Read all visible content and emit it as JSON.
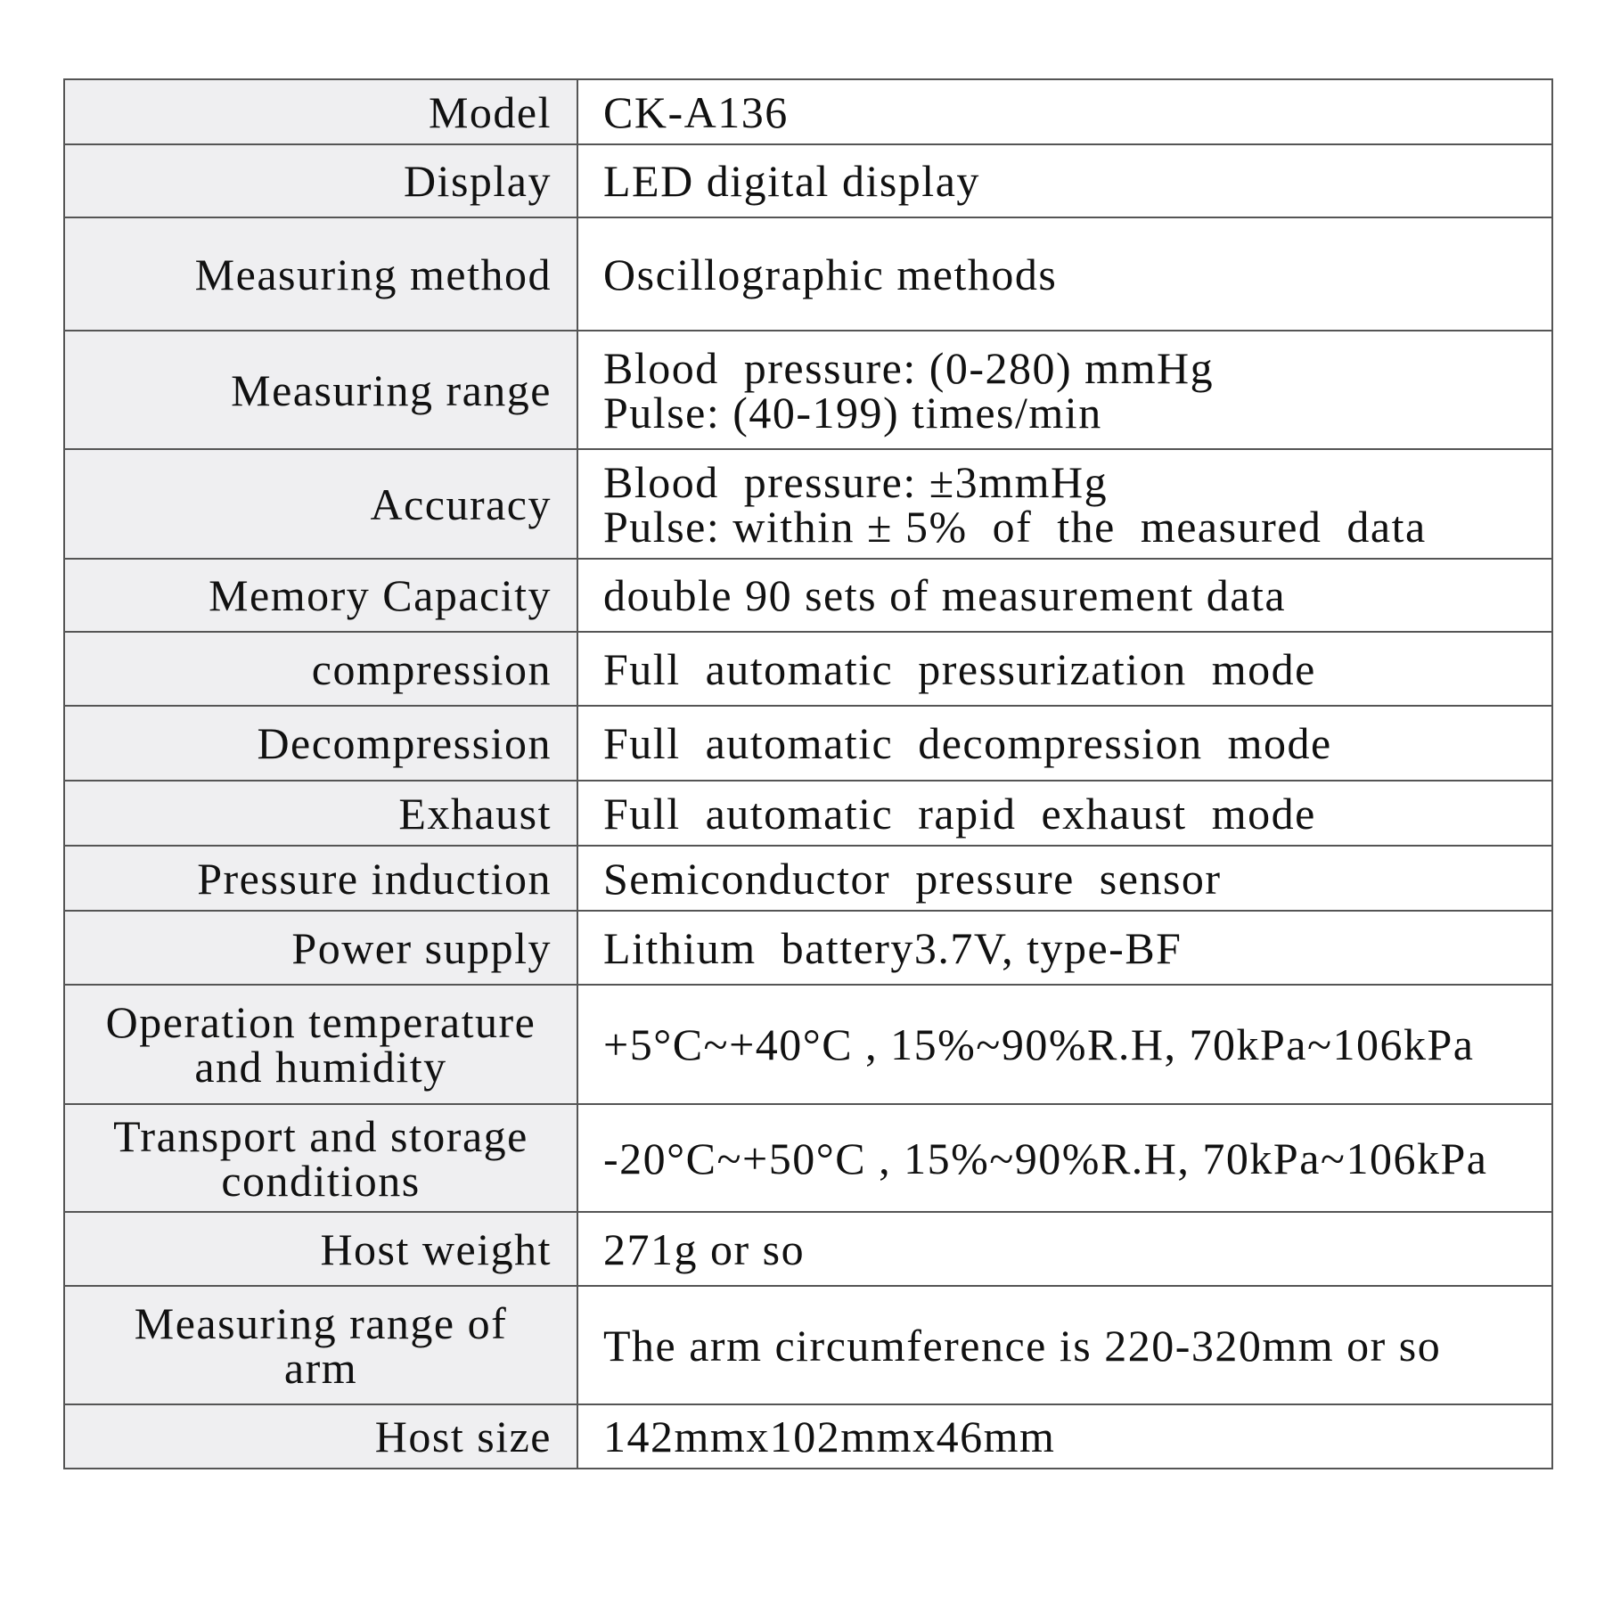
{
  "spec_rows": [
    {
      "label": [
        "Model"
      ],
      "value": [
        "CK-A136"
      ]
    },
    {
      "label": [
        "Display"
      ],
      "value": [
        "LED digital display"
      ]
    },
    {
      "label": [
        "Measuring method"
      ],
      "value": [
        "Oscillographic methods"
      ]
    },
    {
      "label": [
        "Measuring range"
      ],
      "value": [
        "Blood  pressure: (0-280) mmHg",
        "Pulse: (40-199) times/min"
      ]
    },
    {
      "label": [
        "Accuracy"
      ],
      "value": [
        "Blood  pressure: ±3mmHg",
        "Pulse: within ± 5%  of  the  measured  data"
      ]
    },
    {
      "label": [
        "Memory Capacity"
      ],
      "value": [
        "double 90 sets of measurement data"
      ]
    },
    {
      "label": [
        "compression"
      ],
      "value": [
        "Full  automatic  pressurization  mode"
      ]
    },
    {
      "label": [
        "Decompression"
      ],
      "value": [
        "Full  automatic  decompression  mode"
      ]
    },
    {
      "label": [
        "Exhaust"
      ],
      "value": [
        "Full  automatic  rapid  exhaust  mode"
      ]
    },
    {
      "label": [
        "Pressure induction"
      ],
      "value": [
        "Semiconductor  pressure  sensor"
      ]
    },
    {
      "label": [
        "Power supply"
      ],
      "value": [
        "Lithium  battery3.7V, type-BF"
      ]
    },
    {
      "label": [
        "Operation temperature",
        "and humidity"
      ],
      "value": [
        "+5°C~+40°C , 15%~90%R.H, 70kPa~106kPa"
      ]
    },
    {
      "label": [
        "Transport and storage",
        "conditions"
      ],
      "value": [
        "-20°C~+50°C , 15%~90%R.H, 70kPa~106kPa"
      ]
    },
    {
      "label": [
        "Host weight"
      ],
      "value": [
        "271g or so"
      ]
    },
    {
      "label": [
        "Measuring range of",
        "arm"
      ],
      "value": [
        "The arm circumference is 220-320mm or so"
      ]
    },
    {
      "label": [
        "Host size"
      ],
      "value": [
        "142mmx102mmx46mm"
      ]
    }
  ]
}
